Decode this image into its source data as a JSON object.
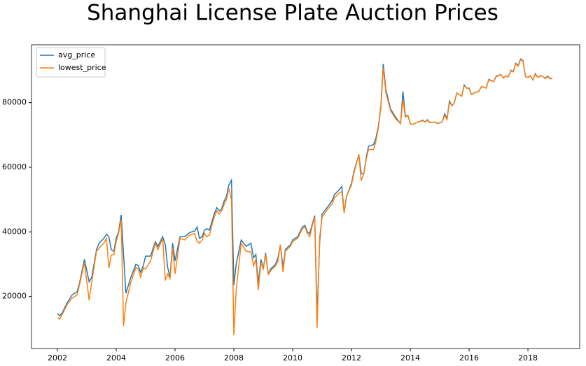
{
  "chart_data": {
    "type": "line",
    "title": "Shanghai License Plate Auction Prices",
    "x": [
      2002.0,
      2002.08,
      2002.17,
      2002.33,
      2002.5,
      2002.67,
      2002.75,
      2002.92,
      2003.08,
      2003.17,
      2003.33,
      2003.42,
      2003.58,
      2003.67,
      2003.75,
      2003.83,
      2003.92,
      2004.0,
      2004.08,
      2004.17,
      2004.25,
      2004.33,
      2004.5,
      2004.67,
      2004.75,
      2004.83,
      2004.92,
      2005.0,
      2005.17,
      2005.33,
      2005.42,
      2005.58,
      2005.67,
      2005.75,
      2005.83,
      2005.92,
      2006.0,
      2006.17,
      2006.33,
      2006.5,
      2006.67,
      2006.75,
      2006.83,
      2006.92,
      2007.0,
      2007.08,
      2007.17,
      2007.25,
      2007.33,
      2007.42,
      2007.5,
      2007.58,
      2007.67,
      2007.75,
      2007.83,
      2007.92,
      2008.0,
      2008.08,
      2008.25,
      2008.42,
      2008.58,
      2008.67,
      2008.75,
      2008.83,
      2008.92,
      2009.0,
      2009.08,
      2009.17,
      2009.25,
      2009.42,
      2009.5,
      2009.58,
      2009.67,
      2009.75,
      2009.92,
      2010.0,
      2010.17,
      2010.33,
      2010.42,
      2010.5,
      2010.58,
      2010.67,
      2010.75,
      2010.83,
      2010.92,
      2011.0,
      2011.17,
      2011.33,
      2011.42,
      2011.58,
      2011.67,
      2011.75,
      2011.83,
      2012.0,
      2012.08,
      2012.25,
      2012.33,
      2012.42,
      2012.5,
      2012.58,
      2012.75,
      2012.83,
      2012.92,
      2013.0,
      2013.08,
      2013.17,
      2013.33,
      2013.5,
      2013.67,
      2013.75,
      2013.83,
      2013.92,
      2014.0,
      2014.08,
      2014.25,
      2014.33,
      2014.42,
      2014.5,
      2014.58,
      2014.67,
      2014.83,
      2014.92,
      2015.08,
      2015.17,
      2015.25,
      2015.33,
      2015.42,
      2015.5,
      2015.58,
      2015.75,
      2015.83,
      2015.92,
      2016.0,
      2016.08,
      2016.17,
      2016.33,
      2016.42,
      2016.58,
      2016.67,
      2016.83,
      2016.92,
      2017.08,
      2017.17,
      2017.25,
      2017.33,
      2017.42,
      2017.5,
      2017.58,
      2017.67,
      2017.75,
      2017.83,
      2017.92,
      2018.0,
      2018.08,
      2018.17,
      2018.25,
      2018.33,
      2018.42,
      2018.5,
      2018.58,
      2018.67,
      2018.75,
      2018.83
    ],
    "series": [
      {
        "name": "avg_price",
        "color": "#1f77b4",
        "values": [
          14700,
          14000,
          15000,
          18000,
          20500,
          21500,
          24000,
          31500,
          24500,
          26000,
          34500,
          36500,
          38000,
          39300,
          38500,
          34500,
          34000,
          38000,
          40000,
          45300,
          33000,
          21000,
          26000,
          30000,
          29500,
          27500,
          29500,
          32500,
          32500,
          37000,
          35500,
          38500,
          36000,
          29000,
          26000,
          36500,
          31000,
          38500,
          38500,
          39800,
          40300,
          41500,
          38000,
          38500,
          40500,
          41000,
          40500,
          43000,
          45500,
          47500,
          46500,
          47000,
          49500,
          51000,
          54500,
          56000,
          23500,
          30000,
          37500,
          35500,
          36500,
          32000,
          33000,
          24000,
          31500,
          28500,
          33500,
          27000,
          28500,
          30000,
          32000,
          36000,
          29000,
          34500,
          36000,
          37500,
          38500,
          41500,
          42000,
          40000,
          39500,
          42500,
          45000,
          14000,
          37000,
          45500,
          47500,
          49500,
          51500,
          53000,
          54000,
          46000,
          51000,
          55000,
          58500,
          64000,
          58000,
          58000,
          63000,
          66500,
          67000,
          69000,
          73000,
          79000,
          92000,
          84000,
          78000,
          75500,
          73500,
          83500,
          76000,
          76000,
          73500,
          73200,
          74000,
          74200,
          74600,
          74000,
          74700,
          73800,
          74000,
          73600,
          74000,
          76500,
          75000,
          80500,
          79000,
          80000,
          83000,
          82000,
          85500,
          84500,
          84500,
          82500,
          83000,
          83500,
          85000,
          84500,
          87200,
          86500,
          88200,
          88700,
          87600,
          88300,
          87900,
          90000,
          89600,
          92200,
          91500,
          93500,
          93000,
          88000,
          87800,
          88300,
          87000,
          89000,
          87800,
          88300,
          88200,
          87500,
          88200,
          87500,
          87500
        ]
      },
      {
        "name": "lowest_price",
        "color": "#ff7f0e",
        "values": [
          13500,
          13000,
          14500,
          17500,
          19500,
          20500,
          23500,
          30500,
          18800,
          24500,
          34000,
          35000,
          36500,
          38000,
          28800,
          32800,
          33000,
          37000,
          39500,
          43800,
          10800,
          18000,
          24500,
          29000,
          28500,
          26000,
          28800,
          28500,
          31000,
          36500,
          34500,
          38000,
          25000,
          27000,
          25500,
          35000,
          27000,
          38000,
          37500,
          39000,
          39500,
          37000,
          36500,
          37500,
          39500,
          38500,
          39000,
          42000,
          44500,
          46500,
          45500,
          46500,
          48500,
          50000,
          53500,
          50000,
          8000,
          22000,
          36500,
          34000,
          33800,
          29500,
          31500,
          22000,
          30500,
          28500,
          33000,
          26800,
          28000,
          29500,
          31000,
          36000,
          27500,
          34000,
          35500,
          37000,
          38000,
          41000,
          41500,
          39500,
          38500,
          42000,
          44500,
          10300,
          38500,
          44500,
          46800,
          48500,
          50500,
          52000,
          52500,
          45800,
          51000,
          54500,
          58000,
          64000,
          55800,
          58000,
          62500,
          65500,
          65500,
          68000,
          72500,
          78500,
          90800,
          83000,
          77500,
          75000,
          73500,
          81000,
          75500,
          76000,
          73500,
          73200,
          74000,
          74200,
          74400,
          74000,
          74500,
          73800,
          74000,
          73500,
          74000,
          76000,
          74800,
          80000,
          79000,
          80000,
          83000,
          82000,
          85200,
          84500,
          84300,
          82500,
          83000,
          83500,
          85000,
          84500,
          87000,
          86500,
          88000,
          88700,
          87600,
          88300,
          87900,
          89800,
          89500,
          92000,
          91300,
          93300,
          92800,
          88000,
          87800,
          88200,
          87000,
          88800,
          87800,
          88200,
          88200,
          87400,
          88000,
          87400,
          87400
        ]
      }
    ],
    "xlim": [
      2001.12,
      2019.76
    ],
    "ylim": [
      3900,
      97900
    ],
    "xticks": [
      2002,
      2004,
      2006,
      2008,
      2010,
      2012,
      2014,
      2016,
      2018
    ],
    "yticks": [
      20000,
      40000,
      60000,
      80000
    ],
    "legend": "upper left",
    "grid": false
  }
}
